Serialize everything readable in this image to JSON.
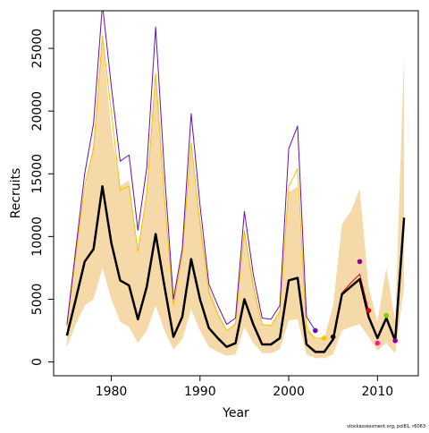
{
  "chart_data": {
    "type": "line",
    "x_label": "Year",
    "y_label": "Recruits",
    "footnote": "stockassessment.org, pol81, r6063",
    "x": [
      1975,
      1976,
      1977,
      1978,
      1979,
      1980,
      1981,
      1982,
      1983,
      1984,
      1985,
      1986,
      1987,
      1988,
      1989,
      1990,
      1991,
      1992,
      1993,
      1994,
      1995,
      1996,
      1997,
      1998,
      1999,
      2000,
      2001,
      2002,
      2003,
      2004,
      2005,
      2006,
      2007,
      2008,
      2009,
      2010,
      2011,
      2012,
      2013
    ],
    "xlim": [
      1973.5,
      2014.6
    ],
    "xticks": [
      1980,
      1990,
      2000,
      2010
    ],
    "ylim": [
      -1100,
      28000
    ],
    "yticks": [
      0,
      5000,
      10000,
      15000,
      20000,
      25000
    ],
    "band": {
      "color": "#f5d9a8",
      "lower": [
        1200,
        3000,
        4500,
        5000,
        7500,
        5000,
        3200,
        2800,
        1500,
        2500,
        4500,
        2500,
        1000,
        1800,
        4200,
        2500,
        1200,
        800,
        500,
        600,
        2800,
        1500,
        700,
        700,
        1000,
        3300,
        3400,
        600,
        300,
        300,
        600,
        2500,
        2800,
        3000,
        2000,
        900,
        1500,
        700,
        6000
      ],
      "upper": [
        3000,
        9000,
        13500,
        17500,
        26000,
        18500,
        14000,
        14500,
        9000,
        13500,
        23000,
        13000,
        5000,
        8500,
        17500,
        11500,
        6000,
        4000,
        2500,
        3200,
        10500,
        6500,
        3000,
        2900,
        4200,
        13500,
        14000,
        3000,
        1800,
        1900,
        4500,
        11000,
        12000,
        13800,
        6000,
        3200,
        7500,
        3200,
        24500
      ]
    },
    "series": [
      {
        "color": "#f2c200",
        "width": 1,
        "values": [
          2800,
          8500,
          14000,
          17000,
          26000,
          20000,
          13700,
          14000,
          8800,
          13500,
          23000,
          13000,
          4500,
          8500,
          17500,
          11000,
          5500,
          3800,
          2500,
          3000,
          10500,
          6000,
          3000,
          2900,
          4000,
          14000,
          15400,
          2500,
          1900,
          1900,
          null,
          null,
          null,
          null,
          null,
          null,
          null,
          null,
          null
        ]
      },
      {
        "color": "#6a0dad",
        "width": 1,
        "values": [
          3000,
          9000,
          15000,
          19000,
          28500,
          22000,
          16000,
          16500,
          10500,
          15500,
          26700,
          15000,
          5000,
          9000,
          19800,
          12500,
          6200,
          4500,
          3000,
          3500,
          12000,
          7000,
          3500,
          3400,
          4500,
          17000,
          18800,
          3600,
          2500,
          null,
          null,
          null,
          null,
          null,
          null,
          null,
          null,
          null,
          null
        ]
      },
      {
        "color": "#e00000",
        "width": 1,
        "values": [
          null,
          null,
          null,
          null,
          null,
          null,
          null,
          null,
          null,
          null,
          null,
          null,
          null,
          null,
          null,
          null,
          null,
          null,
          null,
          null,
          null,
          null,
          null,
          null,
          null,
          null,
          null,
          null,
          null,
          null,
          1800,
          5500,
          6300,
          7000,
          4100,
          null,
          null,
          null,
          null
        ]
      },
      {
        "color": "#000000",
        "width": 2.5,
        "values": [
          2100,
          5000,
          8000,
          9000,
          14000,
          9500,
          6500,
          6100,
          3400,
          6000,
          10200,
          6000,
          2000,
          3600,
          8200,
          5000,
          2700,
          1900,
          1200,
          1500,
          5000,
          3000,
          1400,
          1400,
          1900,
          6500,
          6700,
          1400,
          800,
          800,
          1800,
          5400,
          6000,
          6600,
          3600,
          1900,
          3500,
          1700,
          11500
        ]
      }
    ],
    "points": {
      "x": [
        2003,
        2004,
        2005,
        2008,
        2009,
        2010,
        2011,
        2012
      ],
      "values": [
        2500,
        1900,
        2000,
        8000,
        4100,
        1500,
        3700,
        1700
      ],
      "colors": [
        "#6a0dad",
        "#f2c200",
        "#000000",
        "#8b008b",
        "#e00000",
        "#ff1493",
        "#7ccd00",
        "#8b008b"
      ]
    }
  }
}
